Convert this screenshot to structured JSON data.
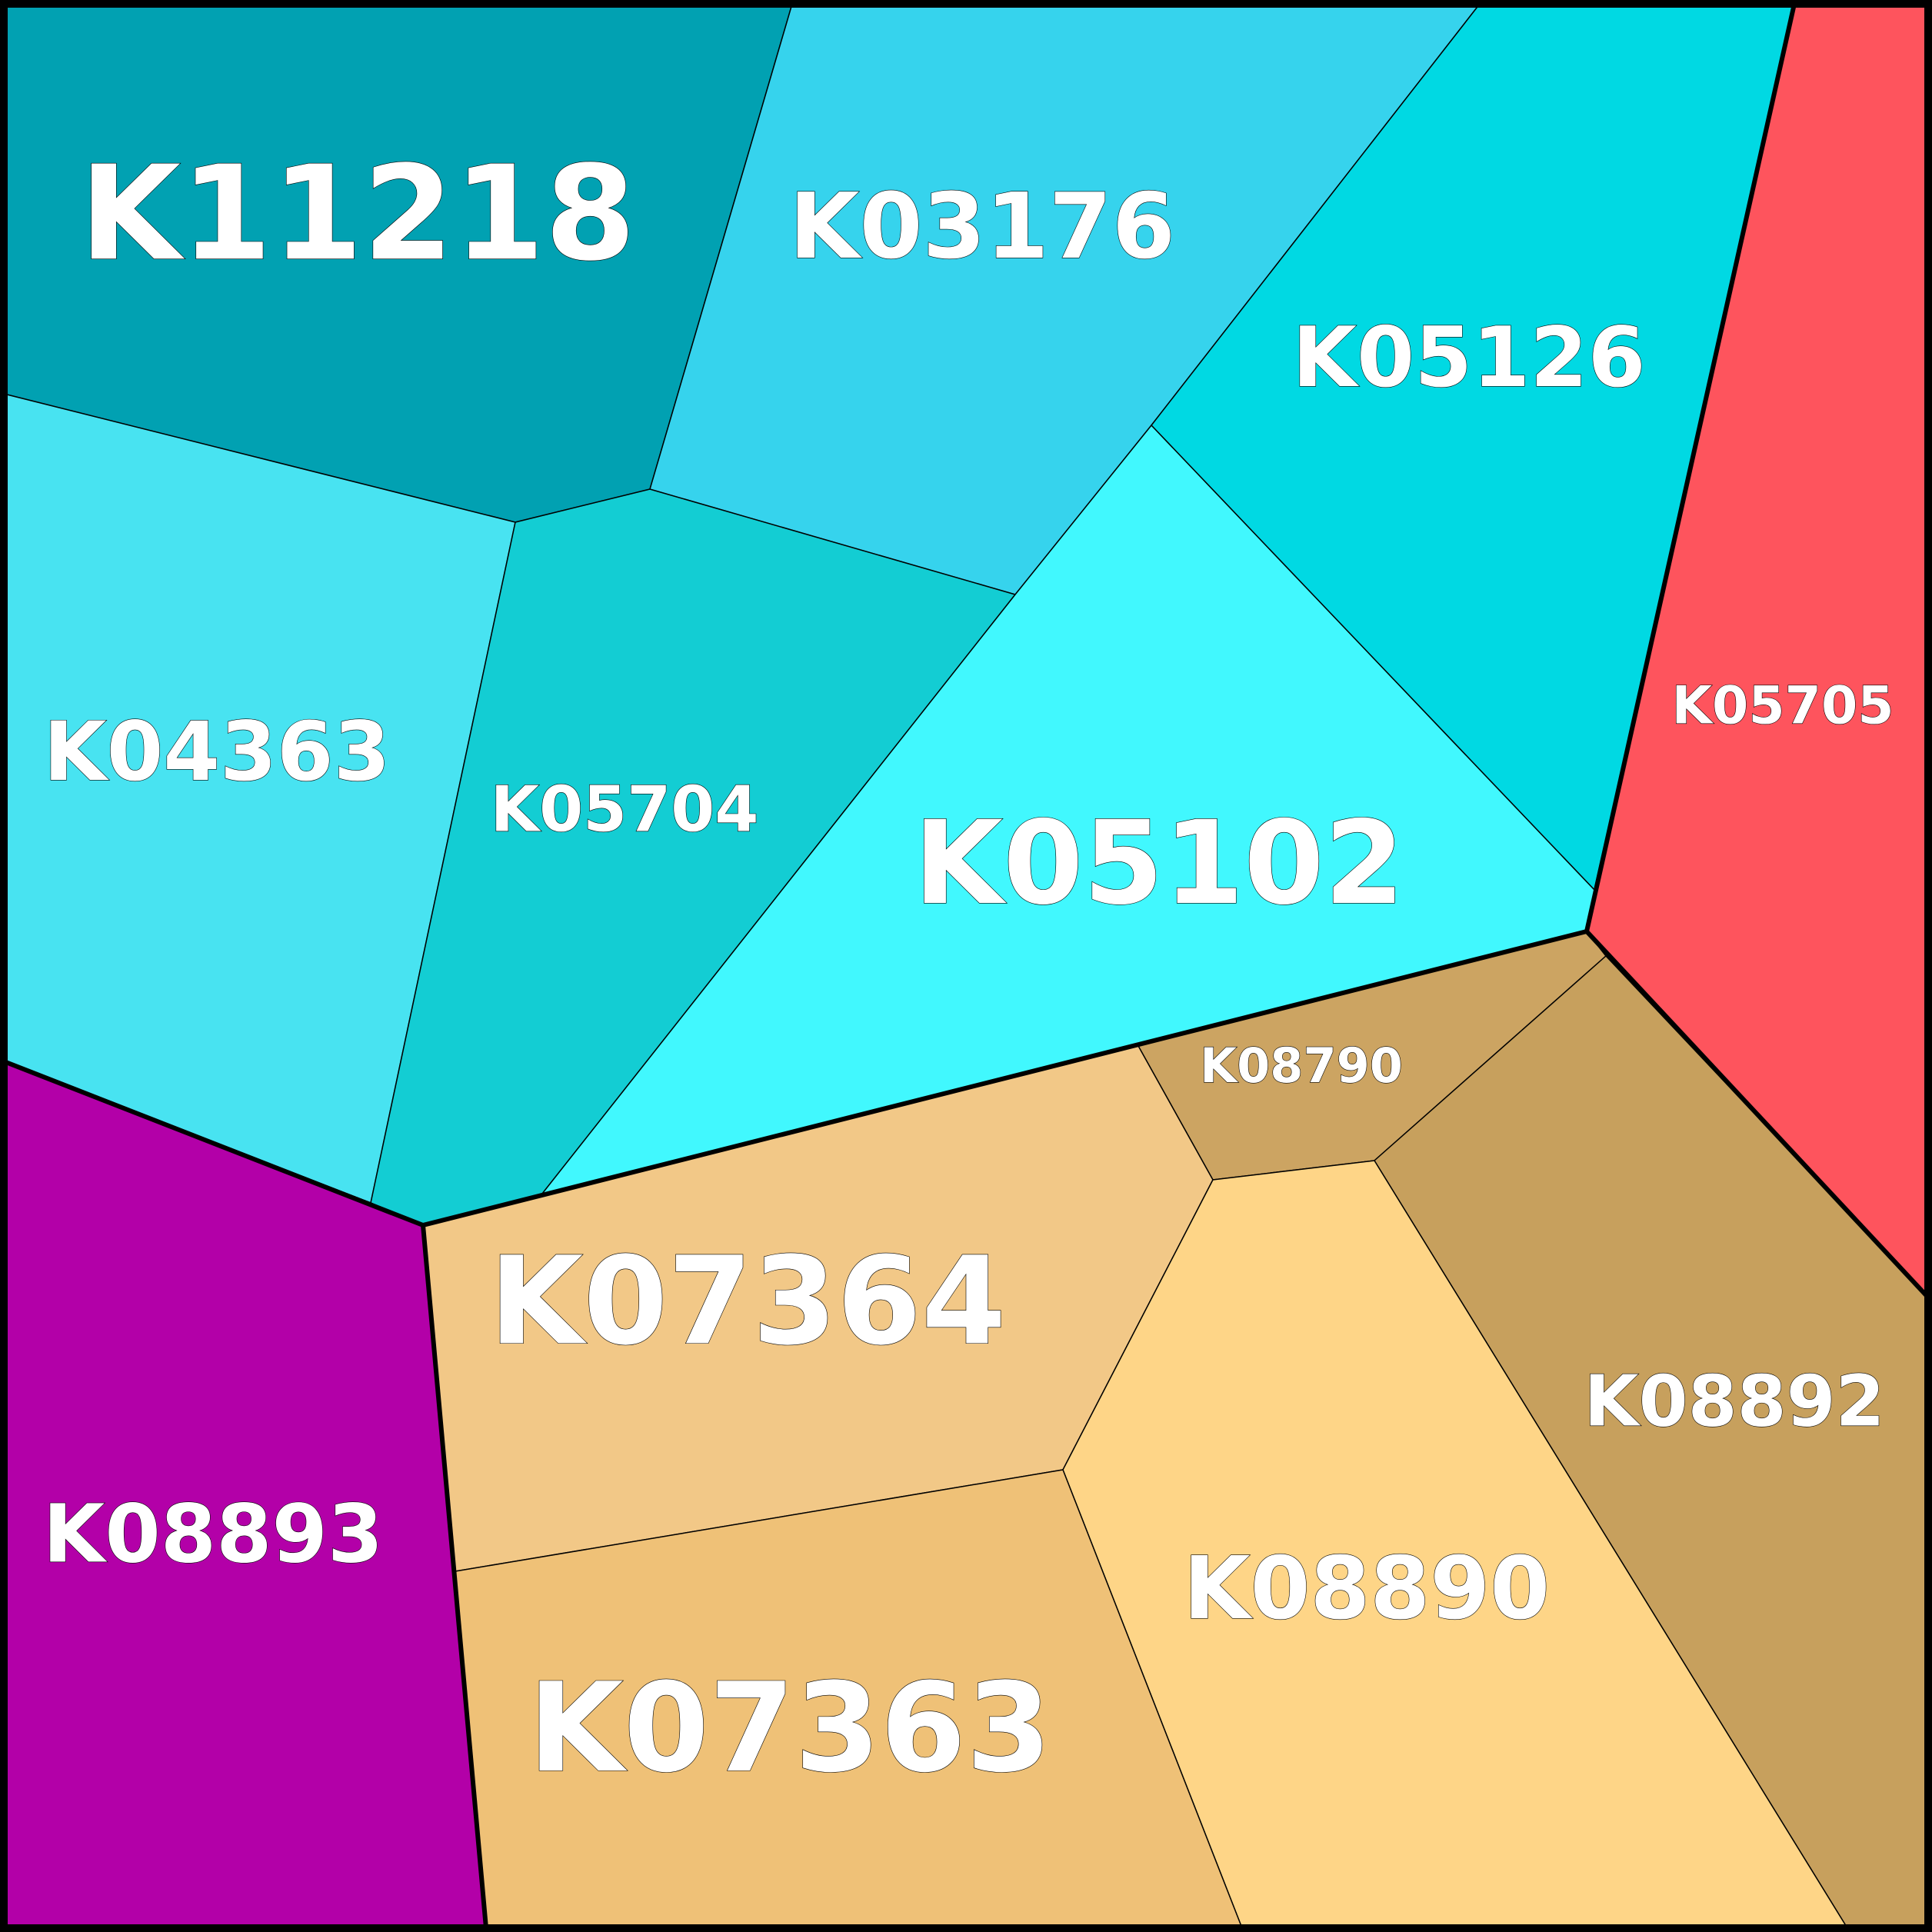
{
  "cells": [
    {
      "id": "K11218",
      "label": "K11218",
      "color": "#01a1b2"
    },
    {
      "id": "K03176",
      "label": "K03176",
      "color": "#36d3ed"
    },
    {
      "id": "K05126",
      "label": "K05126",
      "color": "#00d9e3"
    },
    {
      "id": "K05705",
      "label": "K05705",
      "color": "#fe545d"
    },
    {
      "id": "K04363",
      "label": "K04363",
      "color": "#48e3f1"
    },
    {
      "id": "K05704",
      "label": "K05704",
      "color": "#13cdd3"
    },
    {
      "id": "K05102",
      "label": "K05102",
      "color": "#41f8fe"
    },
    {
      "id": "K08790",
      "label": "K08790",
      "color": "#cca462"
    },
    {
      "id": "K07364",
      "label": "K07364",
      "color": "#f2c887"
    },
    {
      "id": "K08892",
      "label": "K08892",
      "color": "#c7a05d"
    },
    {
      "id": "K08893",
      "label": "K08893",
      "color": "#b300a8"
    },
    {
      "id": "K08890",
      "label": "K08890",
      "color": "#fed587"
    },
    {
      "id": "K07363",
      "label": "K07363",
      "color": "#efc177"
    }
  ]
}
